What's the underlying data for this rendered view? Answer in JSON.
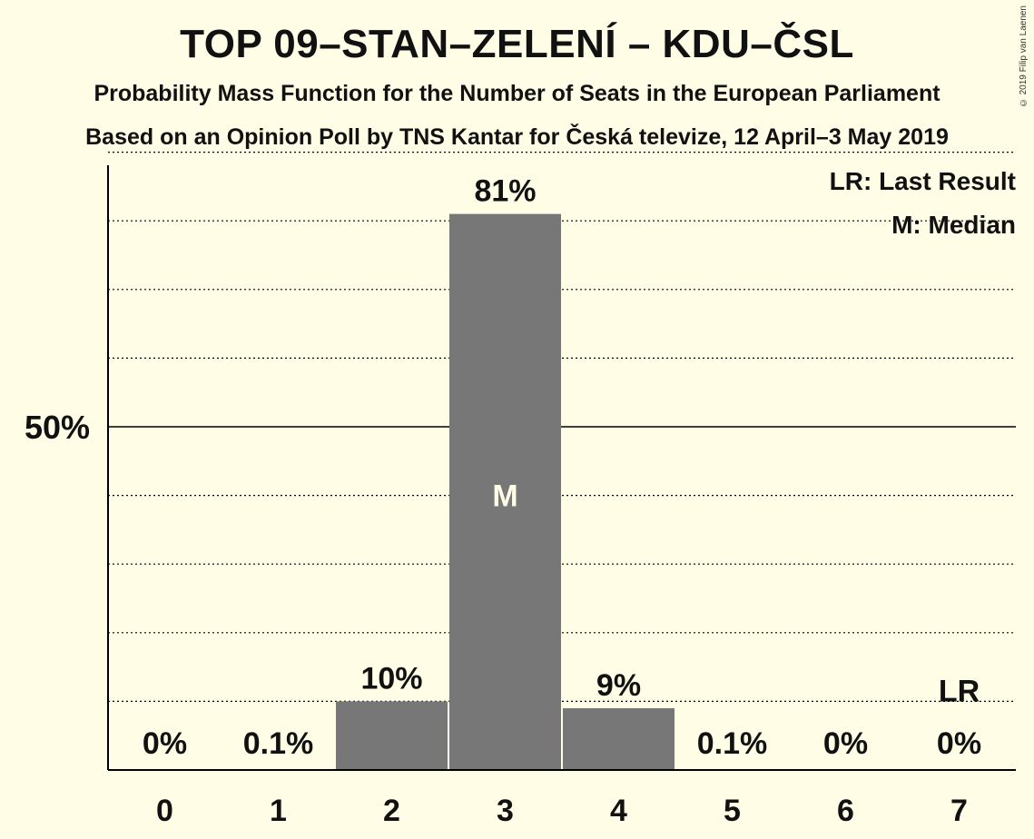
{
  "chart_data": {
    "type": "bar",
    "title": "TOP 09–STAN–ZELENÍ – KDU–ČSL",
    "subtitle": "Probability Mass Function for the Number of Seats in the European Parliament",
    "subtitle2": "Based on an Opinion Poll by TNS Kantar for Česká televize, 12 April–3 May 2019",
    "copyright": "© 2019 Filip van Laenen",
    "categories": [
      "0",
      "1",
      "2",
      "3",
      "4",
      "5",
      "6",
      "7"
    ],
    "values": [
      0,
      0.1,
      10,
      81,
      9,
      0.1,
      0,
      0
    ],
    "value_labels": [
      "0%",
      "0.1%",
      "10%",
      "81%",
      "9%",
      "0.1%",
      "0%",
      "0%"
    ],
    "ylim": [
      0,
      90
    ],
    "ytick": {
      "value": 50,
      "label": "50%"
    },
    "median_index": 3,
    "median_label": "M",
    "last_result_index": 7,
    "last_result_label": "LR",
    "legend": {
      "placement": "top-right",
      "items": [
        "LR: Last Result",
        "M: Median"
      ]
    },
    "colors": {
      "background": "#fffde6",
      "bar": "#777777",
      "text": "#111111"
    }
  }
}
